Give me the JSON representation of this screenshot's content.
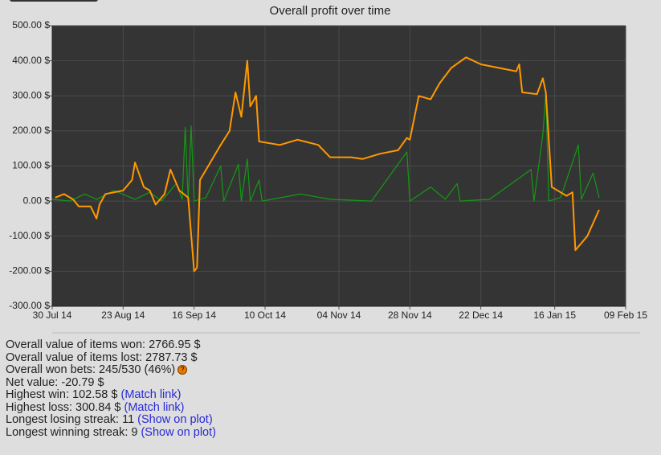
{
  "chart_data": {
    "type": "line",
    "title": "Overall profit over time",
    "xlim": [
      "2014-07-30",
      "2015-02-09"
    ],
    "xticks": [
      {
        "value": "2014-07-30",
        "label": "30 Jul 14"
      },
      {
        "value": "2014-08-23",
        "label": "23 Aug 14"
      },
      {
        "value": "2014-09-16",
        "label": "16 Sep 14"
      },
      {
        "value": "2014-10-10",
        "label": "10 Oct 14"
      },
      {
        "value": "2014-11-04",
        "label": "04 Nov 14"
      },
      {
        "value": "2014-11-28",
        "label": "28 Nov 14"
      },
      {
        "value": "2014-12-22",
        "label": "22 Dec 14"
      },
      {
        "value": "2015-01-16",
        "label": "16 Jan 15"
      },
      {
        "value": "2015-02-09",
        "label": "09 Feb 15"
      }
    ],
    "ylim": [
      -300,
      500
    ],
    "yticks": [
      {
        "value": -300,
        "label": "-300.00 $"
      },
      {
        "value": -200,
        "label": "-200.00 $"
      },
      {
        "value": -100,
        "label": "-100.00 $"
      },
      {
        "value": 0,
        "label": "0.00 $"
      },
      {
        "value": 100,
        "label": "100.00 $"
      },
      {
        "value": 200,
        "label": "200.00 $"
      },
      {
        "value": 300,
        "label": "300.00 $"
      },
      {
        "value": 400,
        "label": "400.00 $"
      },
      {
        "value": 500,
        "label": "500.00 $"
      }
    ],
    "grid": true,
    "series": [
      {
        "color": "#ff9900",
        "x": [
          "2014-07-31",
          "2014-08-03",
          "2014-08-06",
          "2014-08-08",
          "2014-08-12",
          "2014-08-14",
          "2014-08-15",
          "2014-08-17",
          "2014-08-20",
          "2014-08-23",
          "2014-08-26",
          "2014-08-27",
          "2014-08-30",
          "2014-09-01",
          "2014-09-03",
          "2014-09-06",
          "2014-09-08",
          "2014-09-11",
          "2014-09-14",
          "2014-09-16",
          "2014-09-17",
          "2014-09-18",
          "2014-09-25",
          "2014-09-28",
          "2014-09-30",
          "2014-10-02",
          "2014-10-04",
          "2014-10-05",
          "2014-10-07",
          "2014-10-08",
          "2014-10-15",
          "2014-10-21",
          "2014-10-28",
          "2014-11-01",
          "2014-11-08",
          "2014-11-12",
          "2014-11-18",
          "2014-11-24",
          "2014-11-27",
          "2014-11-28",
          "2014-12-01",
          "2014-12-05",
          "2014-12-08",
          "2014-12-12",
          "2014-12-17",
          "2014-12-22",
          "2014-12-28",
          "2015-01-03",
          "2015-01-04",
          "2015-01-05",
          "2015-01-10",
          "2015-01-12",
          "2015-01-13",
          "2015-01-15",
          "2015-01-20",
          "2015-01-22",
          "2015-01-23",
          "2015-01-27",
          "2015-01-31"
        ],
        "values": [
          10,
          20,
          5,
          -15,
          -15,
          -50,
          -10,
          20,
          25,
          30,
          60,
          110,
          40,
          30,
          -10,
          20,
          90,
          30,
          10,
          -200,
          -190,
          60,
          160,
          200,
          310,
          240,
          400,
          270,
          300,
          170,
          160,
          175,
          160,
          125,
          125,
          120,
          135,
          145,
          180,
          175,
          300,
          290,
          335,
          380,
          410,
          390,
          380,
          370,
          390,
          310,
          305,
          350,
          310,
          40,
          15,
          25,
          -140,
          -100,
          -25
        ]
      },
      {
        "color": "#139a13",
        "x": [
          "2014-07-30",
          "2014-08-05",
          "2014-08-10",
          "2014-08-14",
          "2014-08-20",
          "2014-08-27",
          "2014-09-01",
          "2014-09-05",
          "2014-09-10",
          "2014-09-12",
          "2014-09-13",
          "2014-09-14",
          "2014-09-15",
          "2014-09-16",
          "2014-09-20",
          "2014-09-25",
          "2014-09-26",
          "2014-10-01",
          "2014-10-02",
          "2014-10-04",
          "2014-10-05",
          "2014-10-08",
          "2014-10-09",
          "2014-10-22",
          "2014-11-01",
          "2014-11-15",
          "2014-11-27",
          "2014-11-28",
          "2014-12-05",
          "2014-12-10",
          "2014-12-14",
          "2014-12-15",
          "2014-12-25",
          "2015-01-08",
          "2015-01-09",
          "2015-01-12",
          "2015-01-13",
          "2015-01-14",
          "2015-01-18",
          "2015-01-24",
          "2015-01-25",
          "2015-01-29",
          "2015-01-31"
        ],
        "values": [
          5,
          0,
          20,
          5,
          30,
          5,
          25,
          0,
          50,
          5,
          210,
          0,
          215,
          0,
          10,
          100,
          0,
          105,
          0,
          120,
          0,
          60,
          0,
          20,
          5,
          0,
          140,
          0,
          40,
          5,
          50,
          0,
          5,
          90,
          0,
          190,
          310,
          0,
          10,
          160,
          5,
          80,
          10
        ]
      }
    ]
  },
  "stats": [
    {
      "text": "Overall value of items won: 2766.95 $"
    },
    {
      "text": "Overall value of items lost: 2787.73 $"
    },
    {
      "text": "Overall won bets: 245/530 (46%)",
      "icon": "?"
    },
    {
      "text": "Net value: -20.79 $"
    },
    {
      "text": "Highest win: 102.58 $",
      "link": "(Match link)"
    },
    {
      "text": "Highest loss: 300.84 $",
      "link": "(Match link)"
    },
    {
      "text": "Longest losing streak: 11",
      "link": "(Show on plot)"
    },
    {
      "text": "Longest winning streak: 9",
      "link": "(Show on plot)"
    }
  ]
}
